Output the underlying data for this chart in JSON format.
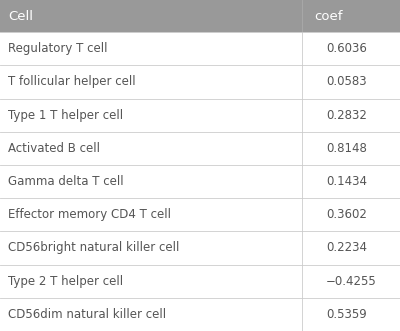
{
  "header": [
    "Cell",
    "coef"
  ],
  "rows": [
    [
      "Regulatory T cell",
      "0.6036"
    ],
    [
      "T follicular helper cell",
      "0.0583"
    ],
    [
      "Type 1 T helper cell",
      "0.2832"
    ],
    [
      "Activated B cell",
      "0.8148"
    ],
    [
      "Gamma delta T cell",
      "0.1434"
    ],
    [
      "Effector memory CD4 T cell",
      "0.3602"
    ],
    [
      "CD56bright natural killer cell",
      "0.2234"
    ],
    [
      "Type 2 T helper cell",
      "−0.4255"
    ],
    [
      "CD56dim natural killer cell",
      "0.5359"
    ]
  ],
  "header_bg": "#999999",
  "header_text_color": "#ffffff",
  "cell_text_color": "#555555",
  "border_color": "#cccccc",
  "table_bg": "#ffffff",
  "outer_border_color": "#bbbbbb",
  "col_split": 0.755,
  "header_fontsize": 9.5,
  "row_fontsize": 8.5
}
